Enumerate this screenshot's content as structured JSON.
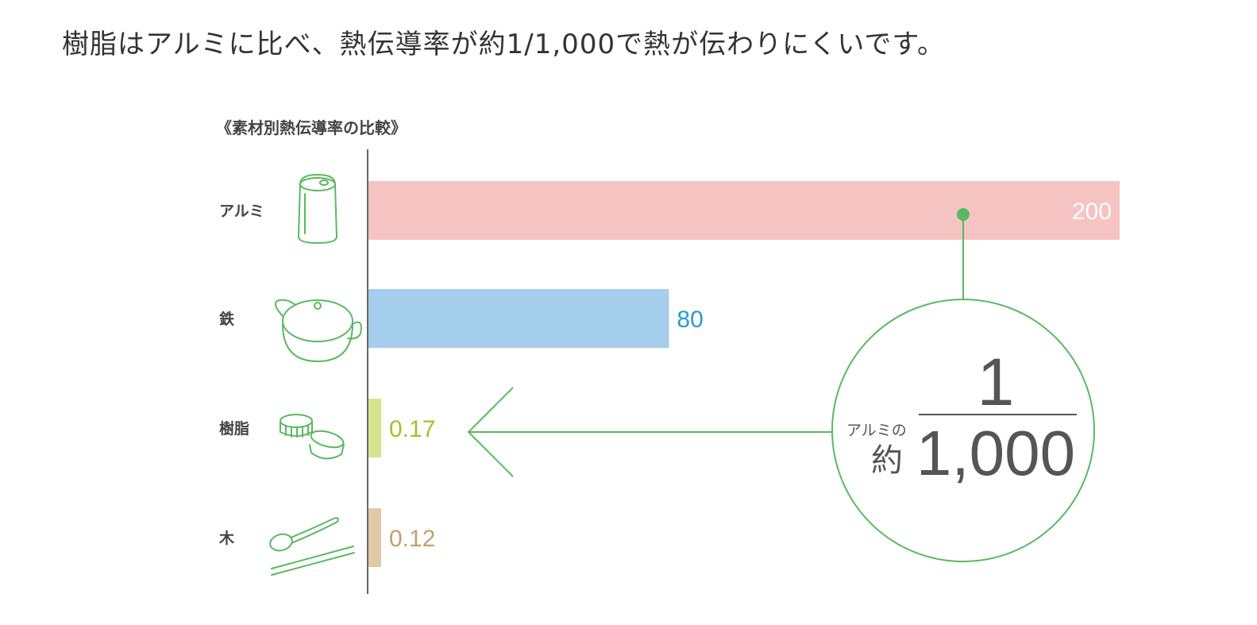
{
  "headline": "樹脂はアルミに比べ、熱伝導率が約1/1,000で熱が伝わりにくいです。",
  "chart_data": {
    "type": "bar",
    "title": "《素材別熱伝導率の比較》",
    "orientation": "horizontal",
    "categories": [
      "アルミ",
      "鉄",
      "樹脂",
      "木"
    ],
    "values": [
      200,
      80,
      0.17,
      0.12
    ],
    "value_labels": [
      "200",
      "80",
      "0.17",
      "0.12"
    ],
    "xlim": [
      0,
      200
    ],
    "grid": false,
    "colors": {
      "アルミ": "#f5c4c2",
      "鉄": "#a5cdec",
      "樹脂": "#d3e48c",
      "木": "#e0c9a6"
    },
    "label_colors": [
      "#ffffff",
      "#2a9ad4",
      "#a5c12a",
      "#c59f69"
    ],
    "icons": [
      "can-icon",
      "pot-icon",
      "bottle-caps-icon",
      "spoon-chopsticks-icon"
    ],
    "annotation": {
      "prefix": "アルミの",
      "yaku": "約",
      "numerator": "1",
      "denominator": "1,000",
      "color": "#5ab95f"
    }
  }
}
